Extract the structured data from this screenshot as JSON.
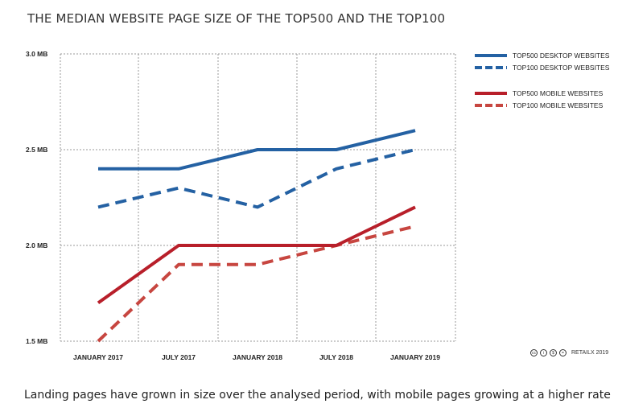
{
  "title": "THE MEDIAN WEBSITE PAGE SIZE OF THE TOP500 AND THE TOP100",
  "caption": "Landing pages have grown in size over the analysed period, with mobile pages growing at a higher rate",
  "credit": {
    "icons": [
      "cc-icon",
      "by-icon",
      "nc-icon",
      "nd-icon"
    ],
    "text": "RETAILX 2019"
  },
  "chart_data": {
    "type": "line",
    "x": [
      "JANUARY 2017",
      "JULY 2017",
      "JANUARY 2018",
      "JULY 2018",
      "JANUARY 2019"
    ],
    "ylim": [
      1.5,
      3.0
    ],
    "yticks": [
      1.5,
      2.0,
      2.5,
      3.0
    ],
    "yticklabels": [
      "1.5 MB",
      "2.0 MB",
      "2.5 MB",
      "3.0 MB"
    ],
    "grid": true,
    "legend_position": "right",
    "series": [
      {
        "name": "TOP500 DESKTOP WEBSITES",
        "values": [
          2.4,
          2.4,
          2.5,
          2.5,
          2.6
        ],
        "color": "#2461a3",
        "dashed": false
      },
      {
        "name": "TOP100 DESKTOP WEBSITES",
        "values": [
          2.2,
          2.3,
          2.2,
          2.4,
          2.5
        ],
        "color": "#2461a3",
        "dashed": true
      },
      {
        "name": "TOP500 MOBILE WEBSITES",
        "values": [
          1.7,
          2.0,
          2.0,
          2.0,
          2.2
        ],
        "color": "#b81f2a",
        "dashed": false
      },
      {
        "name": "TOP100 MOBILE WEBSITES",
        "values": [
          1.5,
          1.9,
          1.9,
          2.0,
          2.1
        ],
        "color": "#c74640",
        "dashed": true
      }
    ]
  }
}
